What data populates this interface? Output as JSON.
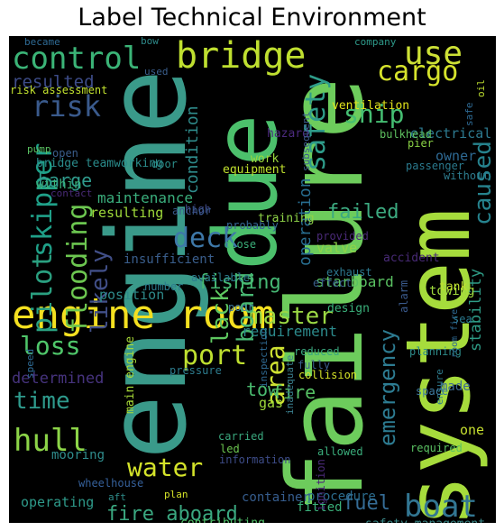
{
  "title": "Label Technical Environment",
  "words": [
    {
      "id": "w-engine",
      "text": "engine",
      "color": "#3a9a8a"
    },
    {
      "id": "w-failure",
      "text": "failure",
      "color": "#6dcc5c"
    },
    {
      "id": "w-system",
      "text": "system",
      "color": "#a6dc3c"
    },
    {
      "id": "w-due",
      "text": "due",
      "color": "#4cc06c"
    },
    {
      "id": "w-engine-room",
      "text": "engine room",
      "color": "#f4e020"
    },
    {
      "id": "w-bridge",
      "text": "bridge",
      "color": "#bfdf30"
    },
    {
      "id": "w-control",
      "text": "control",
      "color": "#3bb477"
    },
    {
      "id": "w-use",
      "text": "use",
      "color": "#cde136"
    },
    {
      "id": "w-cargo",
      "text": "cargo",
      "color": "#d6e32c"
    },
    {
      "id": "w-risk",
      "text": "risk",
      "color": "#3a5a8c"
    },
    {
      "id": "w-ship",
      "text": "ship",
      "color": "#45be72"
    },
    {
      "id": "w-safety",
      "text": "safety",
      "color": "#2e9c8a"
    },
    {
      "id": "w-caused",
      "text": "caused",
      "color": "#26838e"
    },
    {
      "id": "w-deck",
      "text": "deck",
      "color": "#3e78a8"
    },
    {
      "id": "w-pilot",
      "text": "pilot",
      "color": "#2aa080"
    },
    {
      "id": "w-skipper",
      "text": "skipper",
      "color": "#1fa088"
    },
    {
      "id": "w-flooding",
      "text": "flooding",
      "color": "#6cc650"
    },
    {
      "id": "w-likely",
      "text": "likely",
      "color": "#414f88"
    },
    {
      "id": "w-master",
      "text": "master",
      "color": "#9bd844"
    },
    {
      "id": "w-lack",
      "text": "lack",
      "color": "#5ec860"
    },
    {
      "id": "w-board",
      "text": "board",
      "color": "#49b873"
    },
    {
      "id": "w-port",
      "text": "port",
      "color": "#bfe030"
    },
    {
      "id": "w-loss",
      "text": "loss",
      "color": "#4fc66a"
    },
    {
      "id": "w-time",
      "text": "time",
      "color": "#2e9a8c"
    },
    {
      "id": "w-hull",
      "text": "hull",
      "color": "#8cd448"
    },
    {
      "id": "w-water",
      "text": "water",
      "color": "#d4e32a"
    },
    {
      "id": "w-area",
      "text": "area",
      "color": "#cfe232"
    },
    {
      "id": "w-emergency",
      "text": "emergency",
      "color": "#2d7c92"
    },
    {
      "id": "w-boat",
      "text": "boat",
      "color": "#327692"
    },
    {
      "id": "w-tow",
      "text": "tow",
      "color": "#4abb70"
    },
    {
      "id": "w-fire",
      "text": "fire",
      "color": "#56c064"
    },
    {
      "id": "w-fire-aboard",
      "text": "fire aboard",
      "color": "#3aa880"
    },
    {
      "id": "w-fuel",
      "text": "fuel",
      "color": "#356c96"
    },
    {
      "id": "w-fishing",
      "text": "fishing",
      "color": "#46b874"
    },
    {
      "id": "w-barge",
      "text": "barge",
      "color": "#2f9a8c"
    },
    {
      "id": "w-failed",
      "text": "failed",
      "color": "#3caa80"
    },
    {
      "id": "w-operation",
      "text": "operation",
      "color": "#286e90"
    },
    {
      "id": "w-condition",
      "text": "condition",
      "color": "#2f8c8c"
    },
    {
      "id": "w-maintenance",
      "text": "maintenance",
      "color": "#3aae7c"
    },
    {
      "id": "w-stability",
      "text": "stability",
      "color": "#2e9c86"
    },
    {
      "id": "w-resulted",
      "text": "resulted",
      "color": "#3d4c88"
    },
    {
      "id": "w-determined",
      "text": "determined",
      "color": "#46337e"
    },
    {
      "id": "w-requirement",
      "text": "requirement",
      "color": "#2c8a8c"
    },
    {
      "id": "w-resulting",
      "text": "resulting",
      "color": "#9ed93a"
    },
    {
      "id": "w-starboard",
      "text": "starboard",
      "color": "#5ac162"
    },
    {
      "id": "w-position",
      "text": "position",
      "color": "#2e8a8a"
    },
    {
      "id": "w-electrical",
      "text": "electrical",
      "color": "#2d7a90"
    },
    {
      "id": "w-owner",
      "text": "owner",
      "color": "#2e6a94"
    },
    {
      "id": "w-bridge-teamworking",
      "text": "bridge teamworking",
      "color": "#2a8c8c"
    },
    {
      "id": "w-within",
      "text": "within",
      "color": "#3ab27a"
    },
    {
      "id": "w-insufficient",
      "text": "insufficient",
      "color": "#3a5e8c"
    },
    {
      "id": "w-accident",
      "text": "accident",
      "color": "#482a76"
    },
    {
      "id": "w-valve",
      "text": "valve",
      "color": "#8fd448"
    },
    {
      "id": "w-made",
      "text": "made",
      "color": "#3e6a92"
    },
    {
      "id": "w-gas",
      "text": "gas",
      "color": "#9fda3a"
    },
    {
      "id": "w-procedure",
      "text": "procedure",
      "color": "#2b6c8e"
    },
    {
      "id": "w-fitted",
      "text": "fitted",
      "color": "#3ab07a"
    },
    {
      "id": "w-operating",
      "text": "operating",
      "color": "#2e9a8a"
    },
    {
      "id": "w-main-engine",
      "text": "main engine",
      "color": "#a9dc38"
    },
    {
      "id": "w-mooring",
      "text": "mooring",
      "color": "#2f8c8c"
    },
    {
      "id": "w-wheelhouse",
      "text": "wheelhouse",
      "color": "#35609a"
    },
    {
      "id": "w-container",
      "text": "container",
      "color": "#365d8e"
    },
    {
      "id": "w-safety-management",
      "text": "safety management",
      "color": "#3a8a8a"
    },
    {
      "id": "w-contributing",
      "text": "contributing",
      "color": "#4fc068"
    },
    {
      "id": "w-towing",
      "text": "towing",
      "color": "#9fd93c"
    },
    {
      "id": "w-tank",
      "text": "tank",
      "color": "#bfe030"
    },
    {
      "id": "w-one",
      "text": "one",
      "color": "#c6df30"
    },
    {
      "id": "w-required",
      "text": "required",
      "color": "#5ac162"
    },
    {
      "id": "w-identified",
      "text": "identified",
      "color": "#4ab870"
    },
    {
      "id": "w-ventilation",
      "text": "ventilation",
      "color": "#e2e41c"
    },
    {
      "id": "w-bulkhead",
      "text": "bulkhead",
      "color": "#5ec060"
    },
    {
      "id": "w-pier",
      "text": "pier",
      "color": "#8ad246"
    },
    {
      "id": "w-without",
      "text": "without",
      "color": "#2d7c8e"
    },
    {
      "id": "w-passenger",
      "text": "passenger",
      "color": "#2a7a8e"
    },
    {
      "id": "w-hazard",
      "text": "hazard",
      "color": "#4b2a7e"
    },
    {
      "id": "w-work",
      "text": "work",
      "color": "#9bd83e"
    },
    {
      "id": "w-equipment",
      "text": "equipment",
      "color": "#c0e02e"
    },
    {
      "id": "w-training",
      "text": "training",
      "color": "#8fd448"
    },
    {
      "id": "w-door",
      "text": "door",
      "color": "#2b8e8a"
    },
    {
      "id": "w-high",
      "text": "high",
      "color": "#3d4a88"
    },
    {
      "id": "w-anchor",
      "text": "anchor",
      "color": "#3a5a8c"
    },
    {
      "id": "w-probably",
      "text": "probably",
      "color": "#356694"
    },
    {
      "id": "w-close",
      "text": "close",
      "color": "#3bb07a"
    },
    {
      "id": "w-number",
      "text": "number",
      "color": "#2c7c8e"
    },
    {
      "id": "w-available",
      "text": "available",
      "color": "#2c7c8e"
    },
    {
      "id": "w-design",
      "text": "design",
      "color": "#3ab07a"
    },
    {
      "id": "w-collision",
      "text": "collision",
      "color": "#d4e228"
    },
    {
      "id": "w-exhaust",
      "text": "exhaust",
      "color": "#2d7a90"
    },
    {
      "id": "w-effect",
      "text": "effect",
      "color": "#3a5e8c"
    },
    {
      "id": "w-sea",
      "text": "sea",
      "color": "#2a7a8e"
    },
    {
      "id": "w-provided",
      "text": "provided",
      "color": "#4a2a78"
    },
    {
      "id": "w-alarm",
      "text": "alarm",
      "color": "#3a5a8c"
    },
    {
      "id": "w-planning",
      "text": "planning",
      "color": "#2e8c8a"
    },
    {
      "id": "w-room-fire",
      "text": "room fire",
      "color": "#2e6a94"
    },
    {
      "id": "w-ensure",
      "text": "ensure",
      "color": "#2e7c8e"
    },
    {
      "id": "w-space",
      "text": "space",
      "color": "#3e7aa0"
    },
    {
      "id": "w-inspection",
      "text": "inspection",
      "color": "#2e6890"
    },
    {
      "id": "w-inadequate",
      "text": "inadequate",
      "color": "#3b8090"
    },
    {
      "id": "w-reduced",
      "text": "reduced",
      "color": "#3aa87e"
    },
    {
      "id": "w-fully",
      "text": "fully",
      "color": "#3a5e8c"
    },
    {
      "id": "w-pressure",
      "text": "pressure",
      "color": "#2d7c8e"
    },
    {
      "id": "w-poor",
      "text": "poor",
      "color": "#3e7aa0"
    },
    {
      "id": "w-carried",
      "text": "carried",
      "color": "#3aa87e"
    },
    {
      "id": "w-allowed",
      "text": "allowed",
      "color": "#3aae7c"
    },
    {
      "id": "w-ignition",
      "text": "ignition",
      "color": "#4a2a78"
    },
    {
      "id": "w-led",
      "text": "led",
      "color": "#6cc650"
    },
    {
      "id": "w-information",
      "text": "information",
      "color": "#3d4c88"
    },
    {
      "id": "w-plan",
      "text": "plan",
      "color": "#d4e228"
    },
    {
      "id": "w-aft",
      "text": "aft",
      "color": "#2e8c8a"
    },
    {
      "id": "w-speed",
      "text": "speed",
      "color": "#2e6a94"
    },
    {
      "id": "w-contact",
      "text": "contact",
      "color": "#482a76"
    },
    {
      "id": "w-pump",
      "text": "pump",
      "color": "#5ac162"
    },
    {
      "id": "w-open",
      "text": "open",
      "color": "#3a5e8c"
    },
    {
      "id": "w-oil",
      "text": "oil",
      "color": "#bfe030"
    },
    {
      "id": "w-risk-assessment",
      "text": "risk assessment",
      "color": "#c0e02e"
    },
    {
      "id": "w-became",
      "text": "became",
      "color": "#2e6a94"
    },
    {
      "id": "w-bow",
      "text": "bow",
      "color": "#2e8a8a"
    },
    {
      "id": "w-used",
      "text": "used",
      "color": "#3a5e8c"
    },
    {
      "id": "w-company",
      "text": "company",
      "color": "#2e9a8a"
    },
    {
      "id": "w-subsequent",
      "text": "subsequent",
      "color": "#3b5c8c"
    },
    {
      "id": "w-safe",
      "text": "safe",
      "color": "#2e6a94"
    }
  ]
}
